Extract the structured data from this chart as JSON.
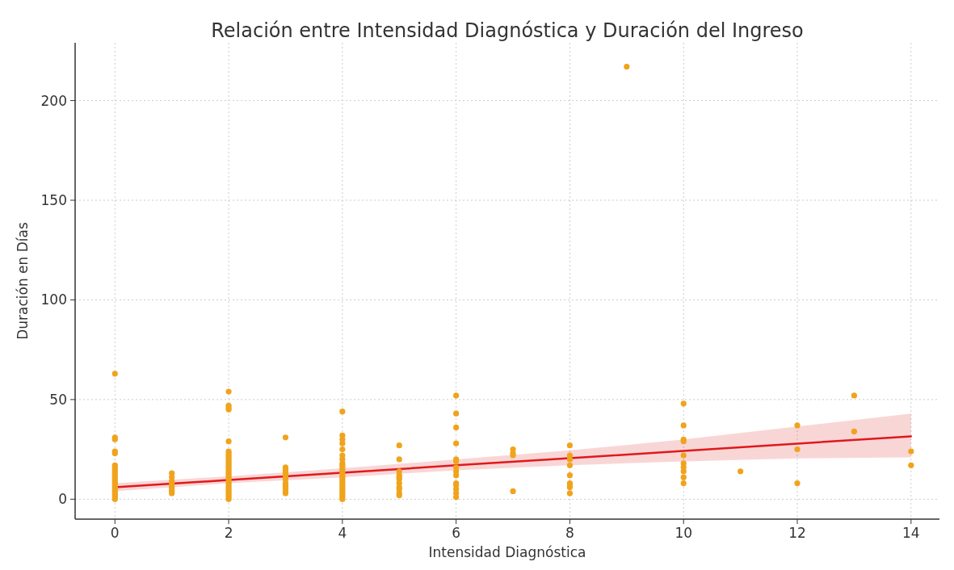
{
  "chart_data": {
    "type": "scatter",
    "title": "Relación entre Intensidad Diagnóstica y Duración del Ingreso",
    "xlabel": "Intensidad Diagnóstica",
    "ylabel": "Duración en Días",
    "xlim": [
      -0.7,
      14.5
    ],
    "ylim": [
      -10,
      229
    ],
    "xticks": [
      0,
      2,
      4,
      6,
      8,
      10,
      12,
      14
    ],
    "yticks": [
      0,
      50,
      100,
      150,
      200
    ],
    "grid": true,
    "series": [
      {
        "marker": "circle",
        "color": "#f0a31c",
        "x": [
          0,
          0,
          0,
          0,
          0,
          0,
          0,
          0,
          0,
          0,
          0,
          0,
          0,
          0,
          0,
          0,
          0,
          0,
          0,
          0,
          0,
          0,
          0,
          1,
          1,
          1,
          1,
          1,
          1,
          1,
          1,
          1,
          2,
          2,
          2,
          2,
          2,
          2,
          2,
          2,
          2,
          2,
          2,
          2,
          2,
          2,
          2,
          2,
          2,
          2,
          2,
          2,
          2,
          2,
          2,
          2,
          2,
          2,
          2,
          2,
          2,
          2,
          3,
          3,
          3,
          3,
          3,
          3,
          3,
          3,
          3,
          3,
          3,
          3,
          3,
          3,
          4,
          4,
          4,
          4,
          4,
          4,
          4,
          4,
          4,
          4,
          4,
          4,
          4,
          4,
          4,
          4,
          4,
          4,
          4,
          4,
          4,
          4,
          4,
          4,
          4,
          4,
          5,
          5,
          5,
          5,
          5,
          5,
          5,
          5,
          5,
          5,
          5,
          6,
          6,
          6,
          6,
          6,
          6,
          6,
          6,
          6,
          6,
          6,
          6,
          6,
          6,
          7,
          7,
          7,
          7,
          8,
          8,
          8,
          8,
          8,
          8,
          8,
          8,
          8,
          9,
          10,
          10,
          10,
          10,
          10,
          10,
          10,
          10,
          10,
          10,
          11,
          12,
          12,
          12,
          13,
          13,
          14,
          14
        ],
        "values": [
          63,
          31,
          30,
          24,
          23,
          17,
          16,
          15,
          14,
          13,
          12,
          11,
          10,
          9,
          8,
          7,
          6,
          5,
          4,
          3,
          2,
          1,
          0,
          13,
          11,
          9,
          8,
          7,
          6,
          5,
          4,
          3,
          54,
          47,
          46,
          45,
          29,
          24,
          23,
          22,
          21,
          20,
          19,
          18,
          17,
          16,
          15,
          14,
          13,
          12,
          11,
          10,
          9,
          8,
          7,
          6,
          5,
          4,
          3,
          2,
          1,
          0,
          31,
          16,
          15,
          14,
          13,
          12,
          11,
          10,
          8,
          7,
          6,
          5,
          4,
          3,
          44,
          32,
          30,
          28,
          25,
          22,
          20,
          18,
          17,
          16,
          15,
          14,
          13,
          12,
          11,
          10,
          9,
          8,
          7,
          6,
          5,
          4,
          3,
          2,
          1,
          0,
          27,
          20,
          14,
          12,
          11,
          10,
          8,
          6,
          5,
          3,
          2,
          52,
          43,
          36,
          28,
          20,
          19,
          16,
          14,
          12,
          8,
          7,
          5,
          3,
          1,
          25,
          23,
          22,
          4,
          27,
          22,
          20,
          17,
          12,
          8,
          7,
          6,
          3,
          217,
          48,
          37,
          30,
          29,
          22,
          18,
          16,
          14,
          11,
          8,
          14,
          37,
          25,
          8,
          52,
          34,
          24,
          17
        ]
      },
      {
        "type": "line",
        "color": "#e0191c",
        "x": [
          0,
          2,
          4,
          6,
          8,
          10,
          12,
          14
        ],
        "values": [
          6,
          9.6,
          13.3,
          17,
          20.6,
          24.2,
          27.9,
          31.5
        ],
        "lower": [
          4,
          8,
          11,
          14.5,
          17,
          19,
          20.5,
          21
        ],
        "upper": [
          8,
          11.5,
          15.5,
          20,
          24.5,
          30,
          36.5,
          43
        ]
      }
    ]
  }
}
